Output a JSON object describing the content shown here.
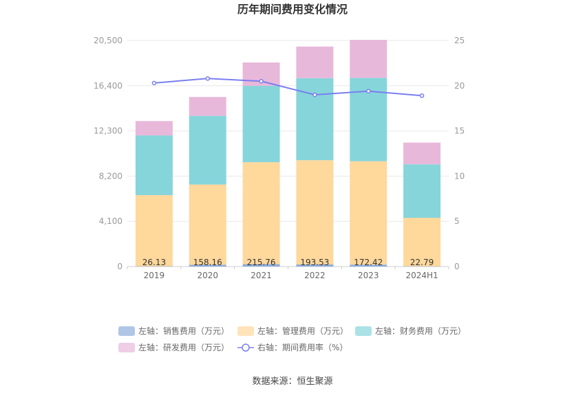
{
  "chart_data": {
    "type": "bar",
    "title": "历年期间费用变化情况",
    "categories": [
      "2019",
      "2020",
      "2021",
      "2022",
      "2023",
      "2024H1"
    ],
    "stacked": true,
    "series": [
      {
        "name": "左轴：销售费用（万元）",
        "axis": "left",
        "type": "bar",
        "color": "#8eaedc",
        "values": [
          26.13,
          158.16,
          215.76,
          193.53,
          172.42,
          22.79
        ],
        "labels": [
          "26.13",
          "158.16",
          "215.76",
          "193.53",
          "172.42",
          "22.79"
        ]
      },
      {
        "name": "左轴：管理费用（万元）",
        "axis": "left",
        "type": "bar",
        "color": "#ffd89c",
        "values": [
          6450,
          7280,
          9250,
          9450,
          9380,
          4400
        ]
      },
      {
        "name": "左轴：财务费用（万元）",
        "axis": "left",
        "type": "bar",
        "color": "#86d5da",
        "values": [
          5420,
          6230,
          6920,
          7440,
          7560,
          4850
        ]
      },
      {
        "name": "左轴：研发费用（万元）",
        "axis": "left",
        "type": "bar",
        "color": "#e8b8da",
        "values": [
          1300,
          1710,
          2120,
          2870,
          3450,
          1970
        ]
      },
      {
        "name": "右轴：期间费用率（%）",
        "axis": "right",
        "type": "line",
        "color": "#7a7ef0",
        "values": [
          20.3,
          20.8,
          20.5,
          19.0,
          19.4,
          18.9
        ]
      }
    ],
    "y_left": {
      "min": 0,
      "max": 20500,
      "ticks": [
        "0",
        "4,100",
        "8,200",
        "12,300",
        "16,400",
        "20,500"
      ]
    },
    "y_right": {
      "min": 0,
      "max": 25,
      "ticks": [
        "0",
        "5",
        "10",
        "15",
        "20",
        "25"
      ]
    },
    "grid": true,
    "legend_position": "bottom",
    "source": "数据来源：恒生聚源"
  }
}
